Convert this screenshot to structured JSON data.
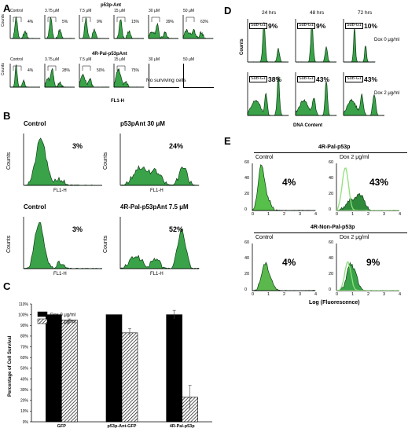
{
  "panel_letters": {
    "A": "A",
    "B": "B",
    "C": "C",
    "D": "D",
    "E": "E"
  },
  "panel_a": {
    "row1_title": "p53p-Ant",
    "row2_title": "4R-Pal-p53pAnt",
    "xlabel": "FL1-H",
    "ylabel": "Counts",
    "no_surviving": "No surviving cells",
    "row1": [
      {
        "label": "Control",
        "pct": "4%"
      },
      {
        "label": "3.75 μM",
        "pct": "5%"
      },
      {
        "label": "7.5 μM",
        "pct": "9%"
      },
      {
        "label": "15 μM",
        "pct": "15%"
      },
      {
        "label": "30 μM",
        "pct": "39%"
      },
      {
        "label": "50 μM",
        "pct": "63%"
      }
    ],
    "row2": [
      {
        "label": "Control",
        "pct": "4%"
      },
      {
        "label": "3.75 μM",
        "pct": "28%"
      },
      {
        "label": "7.5 μM",
        "pct": "50%"
      },
      {
        "label": "15 μM",
        "pct": "75%"
      },
      {
        "label": "30 μM",
        "pct": ""
      },
      {
        "label": "50 μM",
        "pct": ""
      }
    ]
  },
  "panel_b": {
    "ylabel": "Counts",
    "xlabel": "FL1-H",
    "plots": [
      {
        "title": "Control",
        "pct": "3%"
      },
      {
        "title": "p53pAnt 30 μM",
        "pct": "24%"
      },
      {
        "title": "Control",
        "pct": "3%"
      },
      {
        "title": "4R-Pal-p53pAnt 7.5 μM",
        "pct": "52%"
      }
    ]
  },
  "panel_c": {
    "ylabel": "Percentage of Cell Survival",
    "legend": [
      "Dox 0 μg/ml",
      "Dox 2 μg/ml"
    ],
    "yticks": [
      "0%",
      "10%",
      "20%",
      "30%",
      "40%",
      "50%",
      "60%",
      "70%",
      "80%",
      "90%",
      "100%",
      "110%"
    ]
  },
  "panel_d": {
    "cols": [
      "24 hrs",
      "48 hrs",
      "72 hrs"
    ],
    "rows": [
      "Dox 0 μg/ml",
      "Dox 2 μg/ml"
    ],
    "subg1": "Sub-G1",
    "pct_row1": [
      "9%",
      "9%",
      "10%"
    ],
    "pct_row2": [
      "38%",
      "43%",
      "43%"
    ],
    "ylabel": "Counts",
    "xlabel": "DNA Content"
  },
  "panel_e": {
    "top_title": "4R-Pal-p53p",
    "bottom_title": "4R-Non-Pal-p53p",
    "plots": [
      {
        "title": "Control",
        "pct": "4%"
      },
      {
        "title": "Dox 2 μg/ml",
        "pct": "43%"
      },
      {
        "title": "Control",
        "pct": "4%"
      },
      {
        "title": "Dox 2 μg/ml",
        "pct": "9%"
      }
    ],
    "yticks": [
      "0",
      "20",
      "40",
      "60"
    ],
    "xticks": [
      "0",
      "1",
      "2",
      "3",
      "4"
    ],
    "xlabel": "Log (Fluorescence)"
  },
  "chart_data": {
    "type": "bar",
    "categories": [
      "GFP",
      "p53p-Ant-GFP",
      "4R-Pal-p53p"
    ],
    "series": [
      {
        "name": "Dox 0 μg/ml",
        "values": [
          100,
          100,
          100
        ],
        "errors": [
          0,
          0,
          4
        ]
      },
      {
        "name": "Dox 2 μg/ml",
        "values": [
          95,
          83,
          23
        ],
        "errors": [
          1,
          4,
          11
        ]
      }
    ],
    "ylabel": "Percentage of Cell Survival",
    "ylim": [
      0,
      110
    ],
    "legend": "top-left"
  }
}
